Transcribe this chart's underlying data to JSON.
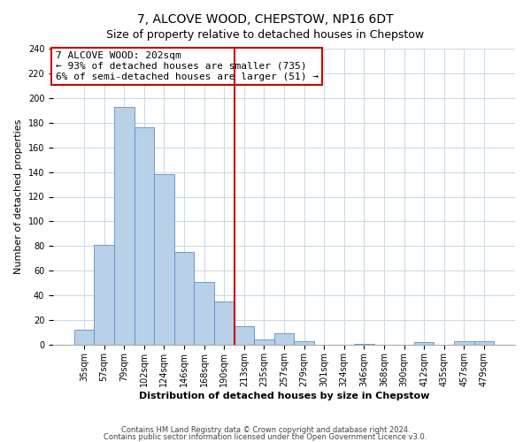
{
  "title": "7, ALCOVE WOOD, CHEPSTOW, NP16 6DT",
  "subtitle": "Size of property relative to detached houses in Chepstow",
  "xlabel": "Distribution of detached houses by size in Chepstow",
  "ylabel": "Number of detached properties",
  "bar_labels": [
    "35sqm",
    "57sqm",
    "79sqm",
    "102sqm",
    "124sqm",
    "146sqm",
    "168sqm",
    "190sqm",
    "213sqm",
    "235sqm",
    "257sqm",
    "279sqm",
    "301sqm",
    "324sqm",
    "346sqm",
    "368sqm",
    "390sqm",
    "412sqm",
    "435sqm",
    "457sqm",
    "479sqm"
  ],
  "bar_values": [
    12,
    81,
    193,
    176,
    138,
    75,
    51,
    35,
    15,
    4,
    9,
    3,
    0,
    0,
    1,
    0,
    0,
    2,
    0,
    3,
    3
  ],
  "bar_color": "#b8d0e8",
  "bar_edge_color": "#5b8ec4",
  "vline_color": "#cc0000",
  "vline_x_index": 8,
  "ylim": [
    0,
    240
  ],
  "yticks": [
    0,
    20,
    40,
    60,
    80,
    100,
    120,
    140,
    160,
    180,
    200,
    220,
    240
  ],
  "annotation_line1": "7 ALCOVE WOOD: 202sqm",
  "annotation_line2": "← 93% of detached houses are smaller (735)",
  "annotation_line3": "6% of semi-detached houses are larger (51) →",
  "footnote1": "Contains HM Land Registry data © Crown copyright and database right 2024.",
  "footnote2": "Contains public sector information licensed under the Open Government Licence v3.0.",
  "background_color": "#ffffff",
  "grid_color": "#c8d8e8",
  "title_fontsize": 10,
  "subtitle_fontsize": 9,
  "ylabel_fontsize": 8,
  "xlabel_fontsize": 8,
  "tick_fontsize": 7,
  "annot_fontsize": 8,
  "footnote_fontsize": 6
}
